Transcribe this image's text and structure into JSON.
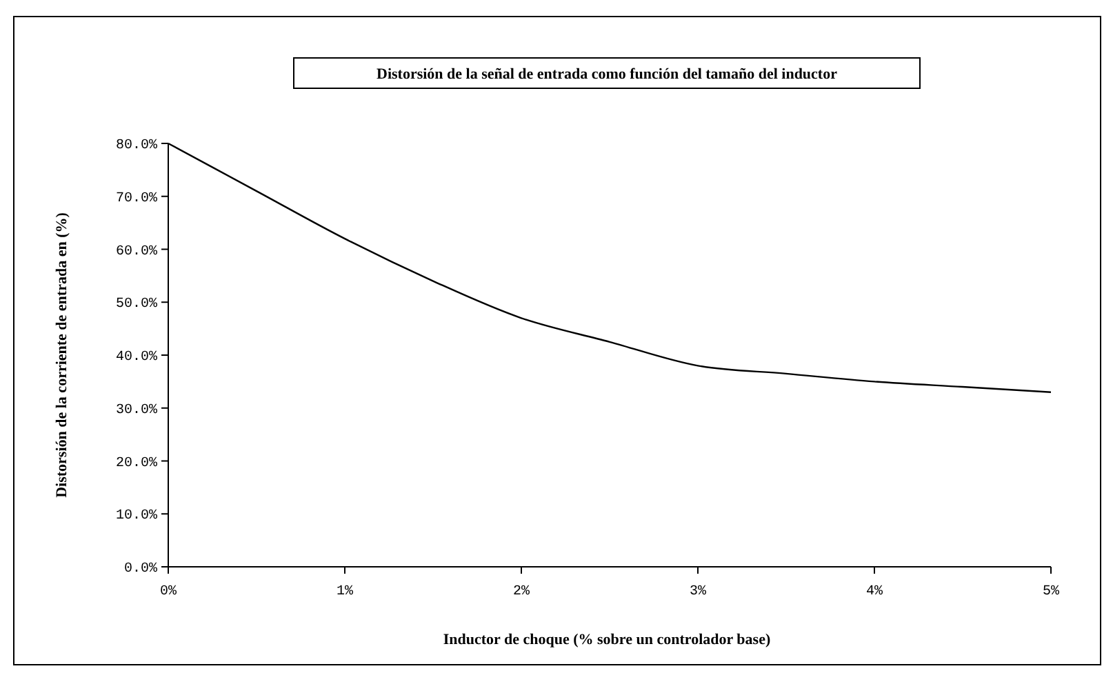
{
  "chart_data": {
    "type": "line",
    "title": "Distorsión de la señal de entrada como función del tamaño del inductor",
    "xlabel": "Inductor de choque (% sobre un controlador base)",
    "ylabel": "Distorsión de la corriente de entrada en (%)",
    "x": [
      0,
      0.5,
      1,
      1.5,
      2,
      2.5,
      3,
      3.5,
      4,
      4.5,
      5
    ],
    "series": [
      {
        "color": "#000000",
        "values": [
          80,
          71,
          62,
          54,
          47,
          42.5,
          38,
          36.5,
          35,
          34,
          33
        ]
      }
    ],
    "xlim": [
      0,
      5
    ],
    "xticks": [
      {
        "value": 0,
        "label": "0%"
      },
      {
        "value": 1,
        "label": "1%"
      },
      {
        "value": 2,
        "label": "2%"
      },
      {
        "value": 3,
        "label": "3%"
      },
      {
        "value": 4,
        "label": "4%"
      },
      {
        "value": 5,
        "label": "5%"
      }
    ],
    "ylim": [
      0,
      80
    ],
    "yticks": [
      {
        "value": 0,
        "label": "0.0%"
      },
      {
        "value": 10,
        "label": "10.0%"
      },
      {
        "value": 20,
        "label": "20.0%"
      },
      {
        "value": 30,
        "label": "30.0%"
      },
      {
        "value": 40,
        "label": "40.0%"
      },
      {
        "value": 50,
        "label": "50.0%"
      },
      {
        "value": 60,
        "label": "60.0%"
      },
      {
        "value": 70,
        "label": "70.0%"
      },
      {
        "value": 80,
        "label": "80.0%"
      }
    ],
    "grid": false,
    "marker": "none",
    "line_style": "solid"
  }
}
